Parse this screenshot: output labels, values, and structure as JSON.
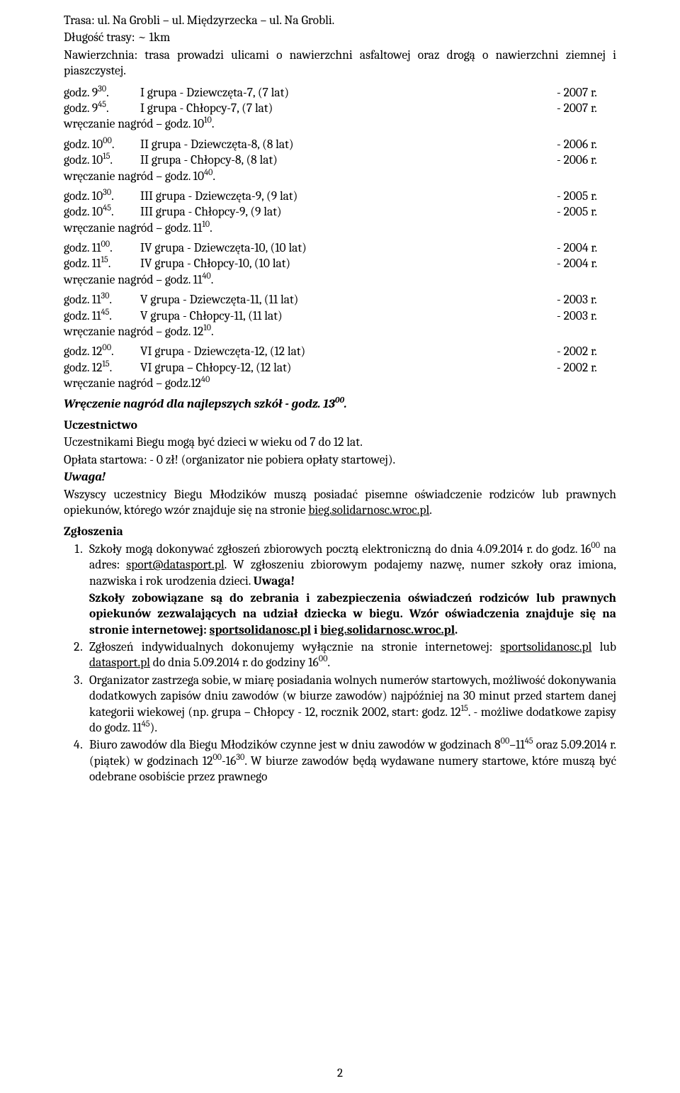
{
  "trasa_line": "Trasa: ul. Na Grobli – ul. Międzyrzecka – ul. Na Grobli.",
  "dlugosc_line": "Długość trasy: ~ 1km",
  "nawierzchnia_line": "Nawierzchnia: trasa prowadzi ulicami o nawierzchni asfaltowej oraz drogą o nawierzchni ziemnej i piaszczystej.",
  "schedule": [
    {
      "lines": [
        {
          "time": "godz. 9³⁰.",
          "group": "I grupa - Dziewczęta-7, (7 lat)",
          "year": "- 2007 r."
        },
        {
          "time": "godz. 9⁴⁵.",
          "group": "I grupa - Chłopcy-7, (7 lat)",
          "year": "- 2007 r."
        }
      ],
      "wrecz": "wręczanie nagród – godz. 10¹⁰."
    },
    {
      "lines": [
        {
          "time": "godz. 10⁰⁰.",
          "group": "II grupa - Dziewczęta-8, (8 lat)",
          "year": "- 2006 r."
        },
        {
          "time": "godz. 10¹⁵.",
          "group": "II grupa - Chłopcy-8, (8 lat)",
          "year": "- 2006 r."
        }
      ],
      "wrecz": "wręczanie nagród – godz. 10⁴⁰."
    },
    {
      "lines": [
        {
          "time": "godz. 10³⁰.",
          "group": "III grupa - Dziewczęta-9, (9 lat)",
          "year": "- 2005 r."
        },
        {
          "time": "godz. 10⁴⁵.",
          "group": "III grupa - Chłopcy-9, (9 lat)",
          "year": "- 2005 r."
        }
      ],
      "wrecz": "wręczanie nagród – godz. 11¹⁰."
    },
    {
      "lines": [
        {
          "time": "godz. 11⁰⁰.",
          "group": "IV grupa - Dziewczęta-10, (10 lat)",
          "year": "- 2004 r."
        },
        {
          "time": "godz. 11¹⁵.",
          "group": "IV grupa - Chłopcy-10, (10 lat)",
          "year": "- 2004 r."
        }
      ],
      "wrecz": "wręczanie nagród – godz. 11⁴⁰."
    },
    {
      "lines": [
        {
          "time": "godz. 11³⁰.",
          "group": "V grupa - Dziewczęta-11, (11 lat)",
          "year": "- 2003 r."
        },
        {
          "time": "godz. 11⁴⁵.",
          "group": "V grupa - Chłopcy-11, (11 lat)",
          "year": "- 2003 r."
        }
      ],
      "wrecz": "wręczanie nagród – godz. 12¹⁰."
    },
    {
      "lines": [
        {
          "time": "godz. 12⁰⁰.",
          "group": "VI grupa - Dziewczęta-12, (12 lat)",
          "year": "- 2002 r."
        },
        {
          "time": "godz. 12¹⁵.",
          "group": "VI grupa – Chłopcy-12, (12 lat)",
          "year": "- 2002 r."
        }
      ],
      "wrecz": "wręczanie nagród – godz.12⁴⁰"
    }
  ],
  "wreczenie_szkoly": "Wręczenie nagród dla najlepszych szkół - godz. 13⁰⁰.",
  "uczestnictwo_h": "Uczestnictwo",
  "uczestnictwo_p1": "Uczestnikami Biegu mogą być dzieci w wieku od 7 do 12 lat.",
  "uczestnictwo_p2": "Opłata startowa: - 0 zł! (organizator nie pobiera opłaty startowej).",
  "uwaga_label": "Uwaga!",
  "uwaga_text_pre": "Wszyscy uczestnicy Biegu Młodzików muszą posiadać pisemne oświadczenie rodziców lub prawnych opiekunów, którego wzór znajduje się na stronie ",
  "uwaga_link": "bieg.solidarnosc.wroc.pl",
  "uwaga_text_post": ".",
  "zgloszenia_h": "Zgłoszenia",
  "zgl_items": {
    "i1_a": "Szkoły mogą dokonywać zgłoszeń zbiorowych pocztą elektroniczną do dnia 4.09.2014 r. do godz. 16⁰⁰ na adres: ",
    "i1_email": "sport@datasport.pl",
    "i1_b": ". W zgłoszeniu zbiorowym podajemy nazwę, numer szkoły oraz imiona, nazwiska i rok urodzenia dzieci. ",
    "i1_bold1": "Uwaga!",
    "i1_bold2a": "Szkoły zobowiązane są do zebrania i zabezpieczenia oświadczeń rodziców lub prawnych opiekunów zezwalających na udział dziecka w biegu. Wzór oświadczenia znajduje się na stronie internetowej: ",
    "i1_link1": "sportsolidanosc.pl",
    "i1_bold2b": " i  ",
    "i1_link2": "bieg.solidarnosc.wroc.pl",
    "i1_bold2c": ".",
    "i2_a": "Zgłoszeń indywidualnych dokonujemy wyłącznie na stronie internetowej:  ",
    "i2_link1": "sportsolidanosc.pl",
    "i2_b": " lub ",
    "i2_link2": "datasport.pl",
    "i2_c": " do dnia 5.09.2014 r. do godziny 16⁰⁰.",
    "i3": "Organizator zastrzega sobie, w miarę posiadania wolnych numerów startowych, możliwość dokonywania dodatkowych zapisów dniu zawodów (w biurze zawodów) najpóźniej na 30 minut przed startem danej kategorii wiekowej (np. grupa – Chłopcy - 12, rocznik 2002, start: godz. 12¹⁵. - możliwe dodatkowe zapisy do godz. 11⁴⁵).",
    "i4": "Biuro zawodów dla Biegu Młodzików czynne jest w dniu zawodów w godzinach 8⁰⁰–11⁴⁵ oraz 5.09.2014 r. (piątek) w godzinach 12⁰⁰-16³⁰. W biurze zawodów będą wydawane numery startowe, które muszą być odebrane osobiście przez prawnego"
  },
  "page_number": "2"
}
